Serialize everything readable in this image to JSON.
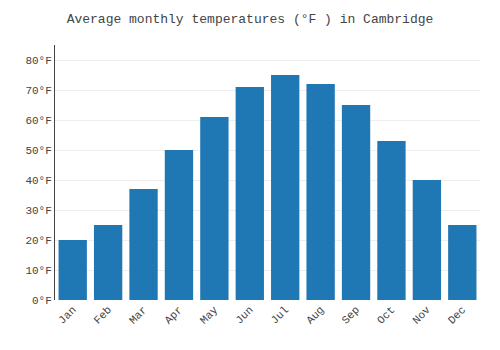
{
  "chart_data": {
    "type": "bar",
    "title": "Average monthly temperatures (°F ) in Cambridge",
    "categories": [
      "Jan",
      "Feb",
      "Mar",
      "Apr",
      "May",
      "Jun",
      "Jul",
      "Aug",
      "Sep",
      "Oct",
      "Nov",
      "Dec"
    ],
    "values": [
      20,
      25,
      37,
      50,
      61,
      71,
      75,
      72,
      65,
      53,
      40,
      25
    ],
    "ylim": [
      0,
      85
    ],
    "yticks": [
      {
        "value": 0,
        "label": "0°F"
      },
      {
        "value": 10,
        "label": "10°F"
      },
      {
        "value": 20,
        "label": "20°F"
      },
      {
        "value": 30,
        "label": "30°F"
      },
      {
        "value": 40,
        "label": "40°F"
      },
      {
        "value": 50,
        "label": "50°F"
      },
      {
        "value": 60,
        "label": "60°F"
      },
      {
        "value": 70,
        "label": "70°F"
      },
      {
        "value": 80,
        "label": "80°F"
      }
    ],
    "grid": true
  }
}
